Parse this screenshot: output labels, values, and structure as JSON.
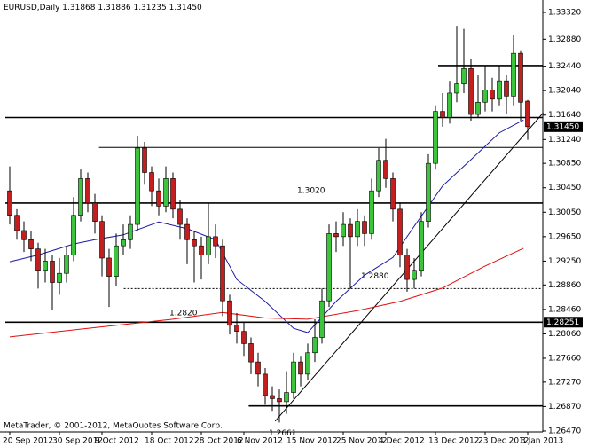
{
  "header": {
    "symbol": "EURUSD,Daily",
    "open": "1.31868",
    "high": "1.31886",
    "low": "1.31235",
    "close": "1.31450"
  },
  "footer": "MetaTrader, © 2001-2012, MetaQuotes Software Corp.",
  "chart_data": {
    "type": "candlestick",
    "categories": [
      "20 Sep 2012",
      null,
      null,
      null,
      null,
      null,
      null,
      "30 Sep 2012",
      null,
      null,
      null,
      null,
      null,
      "9 Oct 2012",
      null,
      null,
      null,
      null,
      null,
      null,
      "18 Oct 2012",
      null,
      null,
      null,
      null,
      null,
      null,
      "28 Oct 2012",
      null,
      null,
      null,
      null,
      null,
      "6 Nov 2012",
      null,
      null,
      null,
      null,
      null,
      null,
      "15 Nov 2012",
      null,
      null,
      null,
      null,
      null,
      null,
      "25 Nov 2012",
      null,
      null,
      null,
      null,
      null,
      "4 Dec 2012",
      null,
      null,
      null,
      null,
      null,
      null,
      "13 Dec 2012",
      null,
      null,
      null,
      null,
      null,
      null,
      "23 Dec 2012",
      null,
      null,
      null,
      null,
      null,
      "3 Jan 2013"
    ],
    "open": [
      1.304,
      1.3,
      1.2975,
      1.296,
      1.2945,
      1.291,
      1.2925,
      1.289,
      1.2905,
      1.2935,
      1.3,
      1.306,
      1.302,
      1.299,
      1.293,
      1.29,
      1.295,
      1.296,
      1.2985,
      1.311,
      1.307,
      1.304,
      1.3015,
      1.306,
      1.301,
      1.2985,
      1.296,
      1.295,
      1.2935,
      1.2965,
      1.295,
      1.286,
      1.282,
      1.281,
      1.279,
      1.276,
      1.274,
      1.2705,
      1.27,
      1.2695,
      1.271,
      1.276,
      1.274,
      1.2775,
      1.28,
      1.286,
      1.297,
      1.2965,
      1.2985,
      1.2965,
      1.299,
      1.297,
      1.304,
      1.309,
      1.306,
      1.301,
      1.2935,
      1.2895,
      1.291,
      1.299,
      1.3085,
      1.317,
      1.316,
      1.32,
      1.3215,
      1.324,
      1.3165,
      1.3185,
      1.3205,
      1.319,
      1.322,
      1.3195,
      1.3265,
      1.31868
    ],
    "high": [
      1.308,
      1.301,
      1.299,
      1.2975,
      1.2955,
      1.2945,
      1.2935,
      1.293,
      1.295,
      1.303,
      1.3075,
      1.307,
      1.3035,
      1.3,
      1.2945,
      1.297,
      1.2985,
      1.3,
      1.313,
      1.312,
      1.308,
      1.306,
      1.308,
      1.307,
      1.3025,
      1.2995,
      1.2975,
      1.2965,
      1.302,
      1.2985,
      1.296,
      1.287,
      1.284,
      1.2825,
      1.28,
      1.2775,
      1.275,
      1.272,
      1.2715,
      1.2745,
      1.2775,
      1.277,
      1.279,
      1.283,
      1.288,
      1.2985,
      1.299,
      1.3005,
      1.2995,
      1.301,
      1.3,
      1.306,
      1.311,
      1.3125,
      1.307,
      1.302,
      1.2945,
      1.293,
      1.3005,
      1.31,
      1.318,
      1.32,
      1.322,
      1.331,
      1.3305,
      1.3255,
      1.323,
      1.3245,
      1.3225,
      1.3245,
      1.323,
      1.3295,
      1.327,
      1.31886
    ],
    "low": [
      1.2985,
      1.296,
      1.294,
      1.2925,
      1.288,
      1.289,
      1.2845,
      1.287,
      1.289,
      1.2925,
      1.299,
      1.3005,
      1.297,
      1.29,
      1.285,
      1.2885,
      1.2935,
      1.2945,
      1.2975,
      1.305,
      1.3015,
      1.3,
      1.3005,
      1.2995,
      1.296,
      1.292,
      1.289,
      1.2895,
      1.292,
      1.293,
      1.2835,
      1.2805,
      1.279,
      1.277,
      1.274,
      1.272,
      1.269,
      1.268,
      1.2661,
      1.2675,
      1.27,
      1.272,
      1.273,
      1.276,
      1.279,
      1.285,
      1.294,
      1.295,
      1.288,
      1.295,
      1.295,
      1.296,
      1.303,
      1.3045,
      1.299,
      1.2915,
      1.2875,
      1.288,
      1.29,
      1.298,
      1.3075,
      1.3145,
      1.315,
      1.3185,
      1.32,
      1.3155,
      1.316,
      1.317,
      1.317,
      1.318,
      1.3165,
      1.318,
      1.3155,
      1.31235
    ],
    "close": [
      1.3,
      1.2975,
      1.296,
      1.2945,
      1.291,
      1.2925,
      1.289,
      1.2905,
      1.2935,
      1.3,
      1.306,
      1.302,
      1.299,
      1.293,
      1.29,
      1.295,
      1.296,
      1.2985,
      1.311,
      1.307,
      1.304,
      1.3015,
      1.306,
      1.301,
      1.2985,
      1.296,
      1.295,
      1.2935,
      1.2965,
      1.295,
      1.286,
      1.282,
      1.281,
      1.279,
      1.276,
      1.274,
      1.2705,
      1.27,
      1.2695,
      1.271,
      1.276,
      1.274,
      1.2775,
      1.28,
      1.286,
      1.297,
      1.2965,
      1.2985,
      1.2965,
      1.299,
      1.297,
      1.304,
      1.309,
      1.306,
      1.301,
      1.2935,
      1.2895,
      1.291,
      1.299,
      1.3085,
      1.317,
      1.316,
      1.32,
      1.3215,
      1.324,
      1.3165,
      1.3185,
      1.3205,
      1.319,
      1.322,
      1.3195,
      1.3265,
      1.3185,
      1.3145
    ],
    "up_color": "#3cc43c",
    "down_color": "#c41e1e",
    "ylim": [
      1.26455,
      1.33523
    ],
    "yticks": [
      {
        "value": 1.3332,
        "label": "1.33320"
      },
      {
        "value": 1.3288,
        "label": "1.32880"
      },
      {
        "value": 1.3244,
        "label": "1.32440"
      },
      {
        "value": 1.3204,
        "label": "1.32040"
      },
      {
        "value": 1.3164,
        "label": "1.31640"
      },
      {
        "value": 1.3124,
        "label": "1.31240"
      },
      {
        "value": 1.3085,
        "label": "1.30850"
      },
      {
        "value": 1.3045,
        "label": "1.30450"
      },
      {
        "value": 1.3005,
        "label": "1.30050"
      },
      {
        "value": 1.2965,
        "label": "1.29650"
      },
      {
        "value": 1.2925,
        "label": "1.29250"
      },
      {
        "value": 1.2886,
        "label": "1.28860"
      },
      {
        "value": 1.2846,
        "label": "1.28460"
      },
      {
        "value": 1.2806,
        "label": "1.28060"
      },
      {
        "value": 1.2766,
        "label": "1.27660"
      },
      {
        "value": 1.2727,
        "label": "1.27270"
      },
      {
        "value": 1.2687,
        "label": "1.26870"
      },
      {
        "value": 1.2647,
        "label": "1.26470"
      }
    ],
    "indicators": [
      {
        "color": "#1a1aa8",
        "x": [
          0,
          4,
          9,
          12,
          16,
          21,
          25,
          29,
          32,
          36,
          40,
          42,
          46,
          50,
          54,
          57,
          61,
          65,
          69,
          72.4
        ],
        "values": [
          1.2924,
          1.2935,
          1.2953,
          1.296,
          1.2968,
          1.2989,
          1.2978,
          1.296,
          1.2895,
          1.2859,
          1.2815,
          1.2808,
          1.2859,
          1.2902,
          1.2931,
          1.2982,
          1.3048,
          1.3091,
          1.3135,
          1.3156
        ]
      },
      {
        "color": "#e01010",
        "x": [
          0,
          11,
          23,
          30,
          36,
          42,
          49,
          55,
          61,
          67,
          72.4
        ],
        "values": [
          1.2801,
          1.2815,
          1.283,
          1.2841,
          1.2832,
          1.283,
          1.2844,
          1.2859,
          1.2881,
          1.2917,
          1.2946
        ]
      }
    ],
    "levels": [
      {
        "value": 1.3245
      },
      {
        "value": 1.316
      },
      {
        "value": 1.3111
      },
      {
        "value": 1.302,
        "label": "1.3020"
      },
      {
        "value": 1.288,
        "label": "1.2880"
      },
      {
        "value": 1.2825
      },
      {
        "value": 1.282,
        "label": "1.2820"
      },
      {
        "value": 1.2688
      }
    ],
    "low_label": {
      "value": 1.2661,
      "label": "1.2661"
    },
    "trendline": {
      "x": [
        37.4,
        75.2
      ],
      "values": [
        1.2663,
        1.3168
      ]
    },
    "price_labels": [
      {
        "value": 1.3145,
        "label": "1.31450"
      },
      {
        "value": 1.28251,
        "label": "1.28251"
      }
    ]
  }
}
